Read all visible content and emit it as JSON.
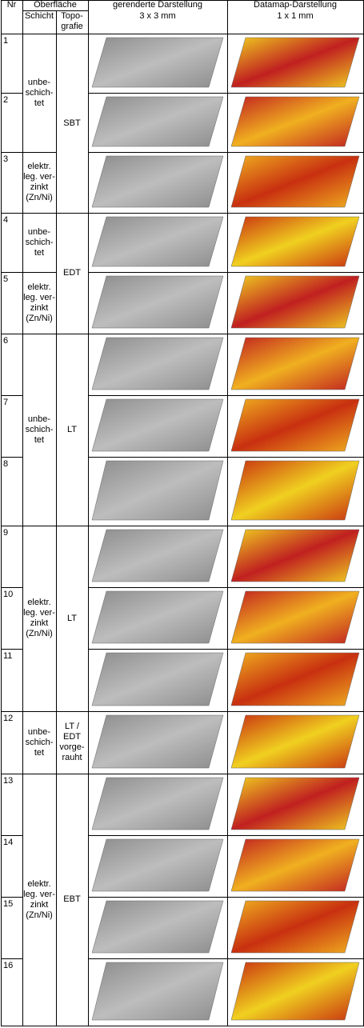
{
  "header": {
    "col_nr": "Nr",
    "group_surface": "Oberfläche",
    "col_layer": "Schicht",
    "col_topography": "Topo-\ngrafie",
    "col_rendered": "gerenderte Darstellung",
    "col_rendered_sub": "3 x 3 mm",
    "col_datamap": "Datamap-Darstellung",
    "col_datamap_sub": "1 x 1 mm"
  },
  "layers": [
    {
      "text": "unbe-\nschich-\ntet"
    },
    {
      "text": "elektr.\nleg. ver-\nzinkt\n(Zn/Ni)"
    },
    {
      "text": "unbe-\nschich-\ntet"
    },
    {
      "text": "elektr.\nleg. ver-\nzinkt\n(Zn/Ni)"
    },
    {
      "text": "unbe-\nschich-\ntet"
    },
    {
      "text": "elektr.\nleg. ver-\nzinkt\n(Zn/Ni)"
    },
    {
      "text": "unbe-\nschich-\ntet"
    },
    {
      "text": "elektr.\nleg. ver-\nzinkt\n(Zn/Ni)"
    }
  ],
  "topographies": [
    {
      "text": "SBT"
    },
    {
      "text": "EDT"
    },
    {
      "text": "LT"
    },
    {
      "text": "LT"
    },
    {
      "text": "LT /\nEDT\nvorge-\nrauht"
    },
    {
      "text": "EBT"
    }
  ],
  "rows": [
    {
      "nr": "1"
    },
    {
      "nr": "2"
    },
    {
      "nr": "3"
    },
    {
      "nr": "4"
    },
    {
      "nr": "5"
    },
    {
      "nr": "6"
    },
    {
      "nr": "7"
    },
    {
      "nr": "8"
    },
    {
      "nr": "9"
    },
    {
      "nr": "10"
    },
    {
      "nr": "11"
    },
    {
      "nr": "12"
    },
    {
      "nr": "13"
    },
    {
      "nr": "14"
    },
    {
      "nr": "15"
    },
    {
      "nr": "16"
    }
  ],
  "images": {
    "rendered_color": "#8c8c8c",
    "datamap_colors": [
      "#f0d020",
      "#c02020",
      "#f0b020",
      "#c83010"
    ]
  }
}
